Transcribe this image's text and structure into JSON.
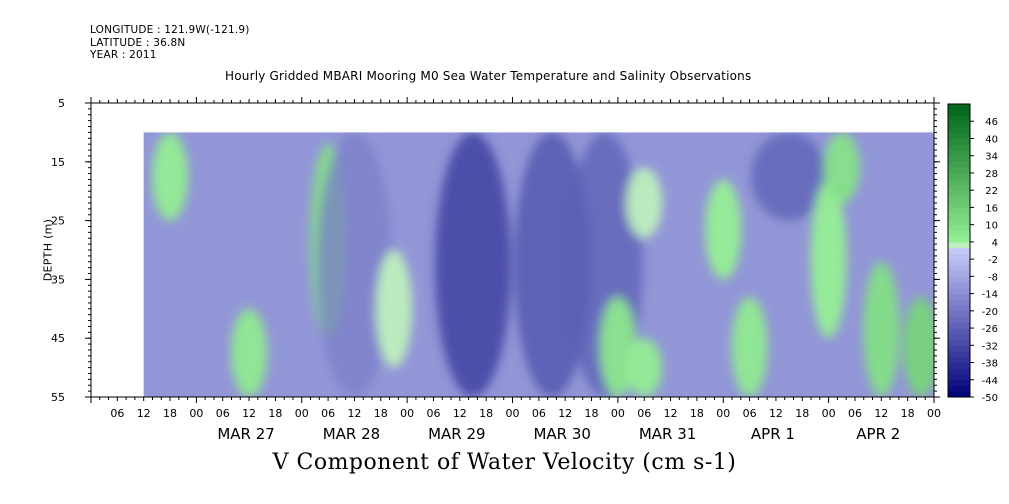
{
  "meta": {
    "longitude": "LONGITUDE : 121.9W(-121.9)",
    "latitude": "LATITUDE : 36.8N",
    "year": "YEAR : 2011"
  },
  "chart_data": {
    "type": "heatmap",
    "title": "Hourly Gridded MBARI Mooring M0 Sea Water Temperature and Salinity Observations",
    "xlabel": "V Component of Water Velocity (cm s-1)",
    "ylabel": "DEPTH (m)",
    "ylim": [
      55,
      5
    ],
    "y_ticks": [
      5,
      15,
      25,
      35,
      45,
      55
    ],
    "x_range_hours": [
      "2011-03-26 00:00",
      "2011-04-03 00:00"
    ],
    "data_extent": {
      "time_start": "2011-03-26 12:00",
      "time_end": "2011-04-03 00:00",
      "depth_top": 10,
      "depth_bottom": 55
    },
    "x_hour_ticks": [
      "06",
      "12",
      "18",
      "00",
      "06",
      "12",
      "18",
      "00",
      "06",
      "12",
      "18",
      "00",
      "06",
      "12",
      "18",
      "00",
      "06",
      "12",
      "18",
      "00",
      "06",
      "12",
      "18",
      "00",
      "06",
      "12",
      "18",
      "00",
      "06",
      "12",
      "18",
      "00"
    ],
    "x_date_labels": [
      "MAR 27",
      "MAR 28",
      "MAR 29",
      "MAR 30",
      "MAR 31",
      "APR  1",
      "APR  2"
    ],
    "colorbar": {
      "levels": [
        46,
        40,
        34,
        28,
        22,
        16,
        10,
        4,
        -2,
        -8,
        -14,
        -20,
        -26,
        -32,
        -38,
        -44,
        -50
      ],
      "range": [
        -50,
        52
      ],
      "step": 2
    },
    "features": [
      {
        "time": "2011-03-26 18:00",
        "depth": [
          10,
          25
        ],
        "v": 5
      },
      {
        "time": "2011-03-27 12:00",
        "depth": [
          40,
          55
        ],
        "v": 6
      },
      {
        "time": "2011-03-28 06:00",
        "depth": [
          12,
          45
        ],
        "v": 10
      },
      {
        "time": "2011-03-28 12:00",
        "depth": [
          10,
          55
        ],
        "v": -18
      },
      {
        "time": "2011-03-28 21:00",
        "depth": [
          30,
          50
        ],
        "v": 3
      },
      {
        "time": "2011-03-29 15:00",
        "depth": [
          10,
          55
        ],
        "v": -36
      },
      {
        "time": "2011-03-30 09:00",
        "depth": [
          10,
          55
        ],
        "v": -30
      },
      {
        "time": "2011-03-30 21:00",
        "depth": [
          10,
          55
        ],
        "v": -26
      },
      {
        "time": "2011-03-31 00:00",
        "depth": [
          38,
          55
        ],
        "v": 7
      },
      {
        "time": "2011-03-31 06:00",
        "depth": [
          45,
          55
        ],
        "v": 5
      },
      {
        "time": "2011-03-31 06:00",
        "depth": [
          16,
          28
        ],
        "v": 3
      },
      {
        "time": "2011-04-01 00:00",
        "depth": [
          18,
          35
        ],
        "v": 4
      },
      {
        "time": "2011-04-01 06:00",
        "depth": [
          38,
          55
        ],
        "v": 6
      },
      {
        "time": "2011-04-01 15:00",
        "depth": [
          10,
          25
        ],
        "v": -26
      },
      {
        "time": "2011-04-02 00:00",
        "depth": [
          18,
          45
        ],
        "v": 4
      },
      {
        "time": "2011-04-02 03:00",
        "depth": [
          10,
          22
        ],
        "v": 9
      },
      {
        "time": "2011-04-02 12:00",
        "depth": [
          32,
          55
        ],
        "v": 10
      },
      {
        "time": "2011-04-02 21:00",
        "depth": [
          38,
          55
        ],
        "v": 14
      }
    ]
  }
}
